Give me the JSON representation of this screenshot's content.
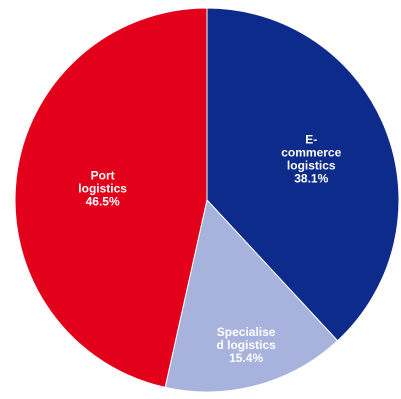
{
  "chart_data": {
    "type": "pie",
    "title": "",
    "slices": [
      {
        "name": "E-commerce logistics",
        "value": 38.1,
        "label_lines": [
          "E-",
          "commerce",
          "logistics",
          "38.1%"
        ],
        "color": "#0d2b8a"
      },
      {
        "name": "Specialised logistics",
        "value": 15.4,
        "label_lines": [
          "Specialise",
          "d logistics",
          "15.4%"
        ],
        "color": "#a7b3dc"
      },
      {
        "name": "Port logistics",
        "value": 46.5,
        "label_lines": [
          "Port",
          "logistics",
          "46.5%"
        ],
        "color": "#e3001b"
      }
    ],
    "start_angle": "12 o'clock",
    "direction": "clockwise",
    "legend": "none"
  }
}
